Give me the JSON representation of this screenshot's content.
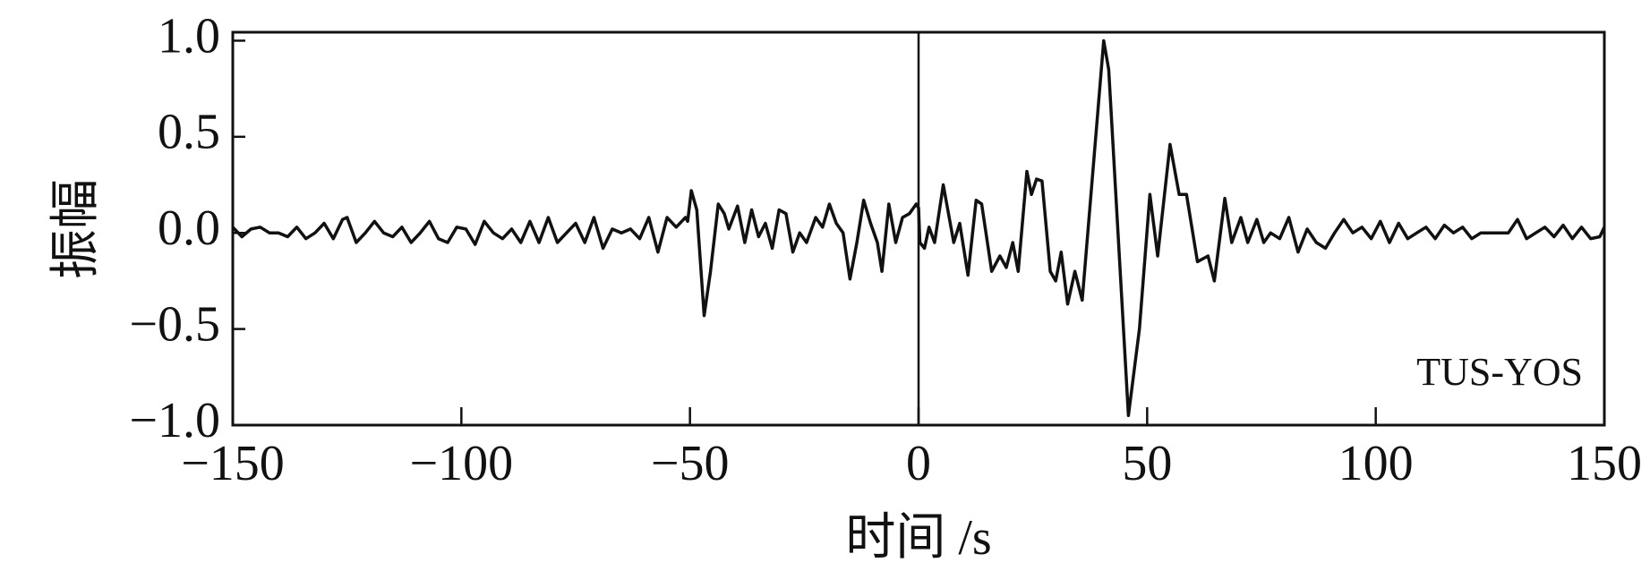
{
  "chart_data": {
    "type": "line",
    "x_label": "时间 /s",
    "y_label": "振幅",
    "annotation": "TUS-YOS",
    "xlim": [
      -150,
      150
    ],
    "ylim": [
      -1,
      1.044
    ],
    "xticks": [
      {
        "value": -150,
        "label": "−150"
      },
      {
        "value": -100,
        "label": "−100"
      },
      {
        "value": -50,
        "label": "−50"
      },
      0,
      50,
      100,
      150
    ],
    "yticks": [
      {
        "value": -1,
        "label": "−1.0"
      },
      {
        "value": -0.5,
        "label": "−0.5"
      },
      {
        "value": 0,
        "label": "0.0"
      },
      {
        "value": 0.5,
        "label": "0.5"
      },
      {
        "value": 1,
        "label": "1.0"
      }
    ],
    "vline": 0,
    "grid": false,
    "series": [
      {
        "color": "#111111",
        "x": [
          -150,
          -148,
          -146,
          -144,
          -142,
          -140,
          -138,
          -136,
          -134,
          -132,
          -130,
          -128,
          -126,
          -125,
          -123,
          -121,
          -119,
          -117,
          -115,
          -113,
          -111,
          -109,
          -107,
          -105,
          -103,
          -101,
          -99,
          -97,
          -95,
          -93,
          -91,
          -89,
          -87,
          -85,
          -83,
          -81,
          -79,
          -77,
          -75,
          -73,
          -71,
          -69,
          -67,
          -65,
          -63,
          -61,
          -59,
          -57,
          -55,
          -53,
          -51,
          -50.5,
          -49.7,
          -48.5,
          -46.9,
          -45.5,
          -43.8,
          -42.5,
          -41.5,
          -39.6,
          -38,
          -36.5,
          -35,
          -33.5,
          -32,
          -30.5,
          -29,
          -27.5,
          -26,
          -24.5,
          -22.5,
          -21,
          -19.5,
          -18,
          -16.5,
          -15,
          -13.5,
          -12,
          -10.5,
          -9,
          -8,
          -6.5,
          -5,
          -3.5,
          -2,
          -0.5,
          0,
          0.3,
          1.3,
          2.3,
          3.5,
          5.4,
          7.7,
          9,
          10.8,
          12.6,
          13.8,
          16,
          17.8,
          19.2,
          20.6,
          21.8,
          23.7,
          24.7,
          25.8,
          27,
          28.8,
          30,
          31.2,
          32.6,
          34.2,
          35.8,
          40.5,
          41.6,
          45.9,
          48.3,
          50.6,
          52.3,
          55,
          57,
          58.6,
          61,
          63.3,
          64.7,
          67,
          68.5,
          70.5,
          72,
          74,
          75.5,
          77,
          79,
          81,
          83,
          85,
          87,
          89,
          91,
          93,
          95,
          97,
          99,
          101,
          103,
          105,
          107,
          109,
          111,
          113,
          115,
          117,
          119,
          121,
          123,
          125,
          127,
          129,
          131,
          133,
          135,
          137,
          139,
          141,
          143,
          145,
          147,
          149,
          150
        ],
        "values": [
          0.03,
          -0.02,
          0.02,
          0.03,
          0,
          0,
          -0.02,
          0.03,
          -0.03,
          0,
          0.05,
          -0.03,
          0.07,
          0.08,
          -0.05,
          0,
          0.06,
          0,
          -0.02,
          0.03,
          -0.05,
          0,
          0.06,
          -0.03,
          -0.05,
          0.03,
          0.02,
          -0.06,
          0.06,
          0,
          -0.03,
          0.02,
          -0.05,
          0.06,
          -0.05,
          0.08,
          -0.05,
          0,
          0.05,
          -0.05,
          0.08,
          -0.08,
          0.02,
          0,
          0.02,
          -0.03,
          0.08,
          -0.1,
          0.08,
          0.03,
          0.08,
          0.06,
          0.22,
          0.12,
          -0.43,
          -0.2,
          0.15,
          0.1,
          0.02,
          0.14,
          -0.05,
          0.12,
          -0.02,
          0.05,
          -0.08,
          0.12,
          0.1,
          -0.1,
          0,
          -0.05,
          0.08,
          0.03,
          0.15,
          0.05,
          0,
          -0.24,
          -0.05,
          0.17,
          0.05,
          -0.05,
          -0.2,
          0.15,
          -0.05,
          0.08,
          0.1,
          0.15,
          0.13,
          -0.05,
          -0.08,
          0.03,
          -0.05,
          0.25,
          -0.05,
          0.05,
          -0.22,
          0.17,
          0.15,
          -0.2,
          -0.12,
          -0.18,
          -0.05,
          -0.2,
          0.32,
          0.2,
          0.28,
          0.27,
          -0.2,
          -0.25,
          -0.1,
          -0.37,
          -0.2,
          -0.35,
          1,
          0.85,
          -0.95,
          -0.5,
          0.2,
          -0.12,
          0.46,
          0.2,
          0.2,
          -0.15,
          -0.12,
          -0.25,
          0.18,
          -0.05,
          0.08,
          -0.05,
          0.07,
          -0.05,
          0,
          -0.03,
          0.08,
          -0.1,
          0.02,
          -0.05,
          -0.08,
          0,
          0.07,
          0,
          0.03,
          -0.03,
          0.06,
          -0.05,
          0.05,
          -0.03,
          0,
          0.03,
          -0.03,
          0.04,
          0,
          0.03,
          -0.03,
          0,
          0,
          0,
          0,
          0.07,
          -0.03,
          0,
          0.03,
          -0.02,
          0.04,
          -0.03,
          0.03,
          -0.03,
          -0.02,
          0.03
        ]
      }
    ]
  }
}
